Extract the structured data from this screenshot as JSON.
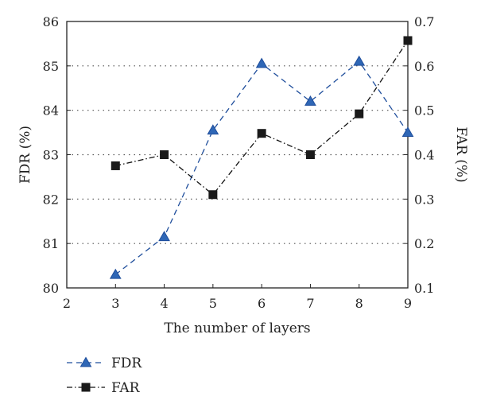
{
  "chart_data": {
    "type": "line",
    "xlabel": "The number of layers",
    "ylabel_left": "FDR (%)",
    "ylabel_right": "FAR (%)",
    "xlim": [
      2,
      9
    ],
    "ylim_left": [
      80,
      86
    ],
    "ylim_right": [
      0.1,
      0.7
    ],
    "x_ticks": [
      2,
      3,
      4,
      5,
      6,
      7,
      8,
      9
    ],
    "y_left_ticks": [
      80,
      81,
      82,
      83,
      84,
      85,
      86
    ],
    "y_right_ticks": [
      0.1,
      0.2,
      0.3,
      0.4,
      0.5,
      0.6,
      0.7
    ],
    "grid": "horizontal-dotted",
    "legend_position": "bottom-left",
    "series": [
      {
        "name": "FDR",
        "axis": "left",
        "marker": "triangle",
        "line_style": "dashed",
        "color": "#1f4e9c",
        "marker_color": "#2f67b6",
        "x": [
          3,
          4,
          5,
          6,
          7,
          8,
          9
        ],
        "values": [
          80.3,
          81.15,
          83.55,
          85.05,
          84.2,
          85.1,
          83.5
        ]
      },
      {
        "name": "FAR",
        "axis": "right",
        "marker": "square",
        "line_style": "dash-dot",
        "color": "#111111",
        "marker_color": "#1a1a1a",
        "x": [
          3,
          4,
          5,
          6,
          7,
          8,
          9
        ],
        "values": [
          0.375,
          0.4,
          0.31,
          0.448,
          0.4,
          0.492,
          0.657
        ]
      }
    ]
  }
}
